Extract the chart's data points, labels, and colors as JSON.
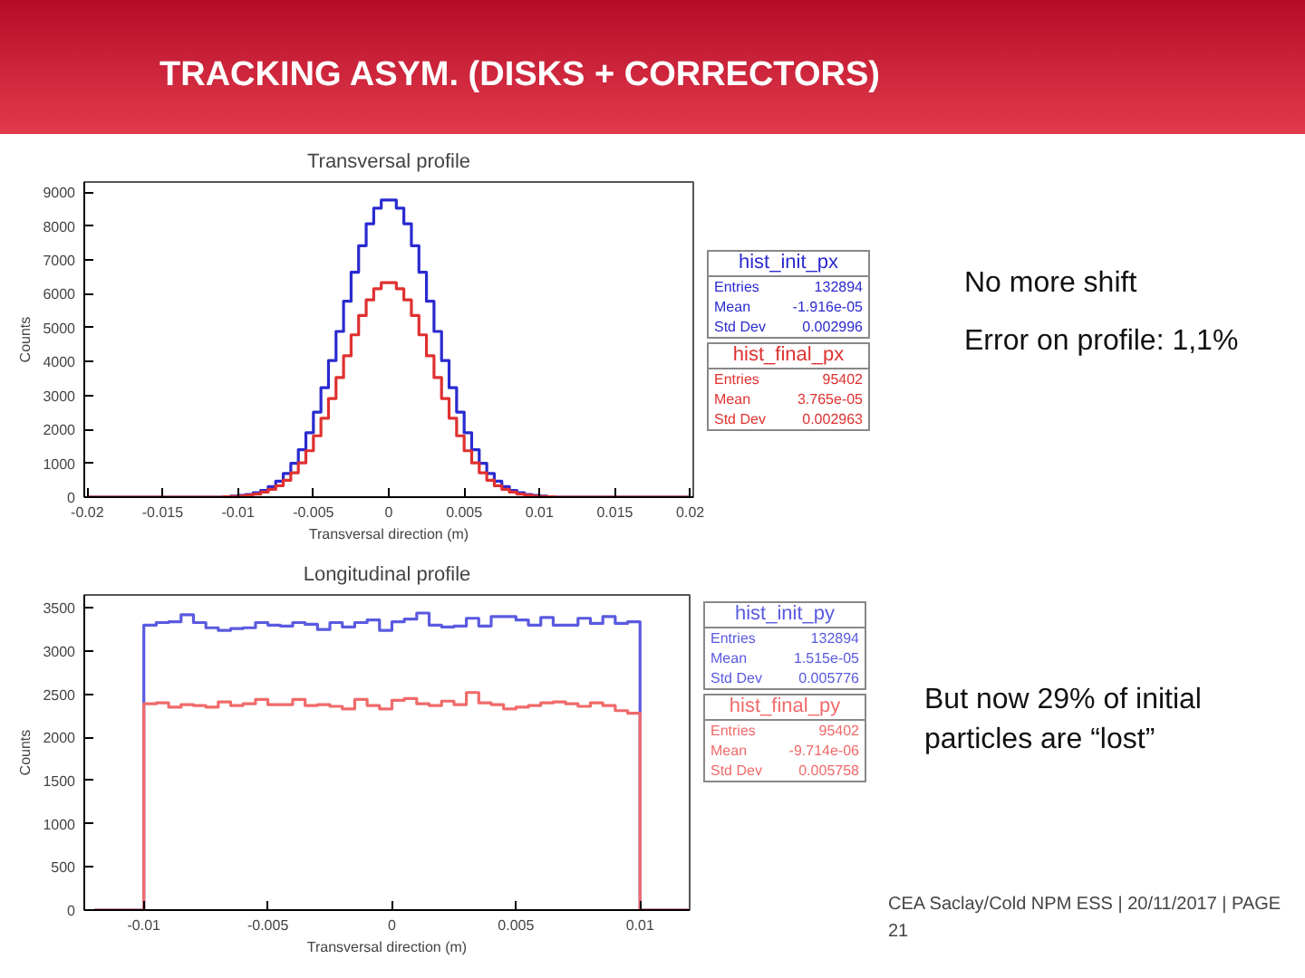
{
  "chart_data": [
    {
      "type": "histogram",
      "title": "Transversal profile",
      "xlabel": "Transversal direction (m)",
      "ylabel": "Counts",
      "bins": [
        -0.02,
        -0.0195,
        -0.019,
        -0.0185,
        -0.018,
        -0.0175,
        -0.017,
        -0.0165,
        -0.016,
        -0.0155,
        -0.015,
        -0.0145,
        -0.014,
        -0.0135,
        -0.013,
        -0.0125,
        -0.012,
        -0.0115,
        -0.011,
        -0.0105,
        -0.01,
        -0.0095,
        -0.009,
        -0.0085,
        -0.008,
        -0.0075,
        -0.007,
        -0.0065,
        -0.006,
        -0.0055,
        -0.005,
        -0.0045,
        -0.004,
        -0.0035,
        -0.003,
        -0.0025,
        -0.002,
        -0.0015,
        -0.001,
        -0.0005,
        0,
        0.0005,
        0.001,
        0.0015,
        0.002,
        0.0025,
        0.003,
        0.0035,
        0.004,
        0.0045,
        0.005,
        0.0055,
        0.006,
        0.0065,
        0.007,
        0.0075,
        0.008,
        0.0085,
        0.009,
        0.0095,
        0.01,
        0.0105,
        0.011,
        0.0115,
        0.012,
        0.0125,
        0.013,
        0.0135,
        0.014,
        0.0145,
        0.015,
        0.0155,
        0.016,
        0.0165,
        0.017,
        0.0175,
        0.018,
        0.0185,
        0.019,
        0.0195,
        0.02
      ],
      "series": [
        {
          "name": "hist_init_px",
          "color": "#2a2ad0",
          "values": [
            0,
            0,
            0,
            0,
            0,
            0,
            0,
            0,
            0,
            0,
            0,
            0,
            0,
            0,
            0,
            0,
            0,
            0,
            10,
            30,
            50,
            80,
            130,
            200,
            310,
            470,
            700,
            1000,
            1400,
            1900,
            2510,
            3230,
            4030,
            4890,
            5780,
            6640,
            7420,
            8070,
            8530,
            8770,
            8770,
            8530,
            8070,
            7420,
            6640,
            5780,
            4890,
            4030,
            3230,
            2510,
            1900,
            1400,
            1000,
            700,
            470,
            310,
            200,
            130,
            80,
            50,
            30,
            10,
            0,
            0,
            0,
            0,
            0,
            0,
            0,
            0,
            0,
            0,
            0,
            0,
            0,
            0,
            0,
            0,
            0,
            0
          ]
        },
        {
          "name": "hist_final_px",
          "color": "#e03030",
          "values": [
            0,
            0,
            0,
            0,
            0,
            0,
            0,
            0,
            0,
            0,
            0,
            0,
            0,
            0,
            0,
            0,
            0,
            0,
            10,
            20,
            30,
            60,
            90,
            150,
            230,
            340,
            500,
            720,
            1010,
            1370,
            1810,
            2330,
            2910,
            3530,
            4170,
            4790,
            5360,
            5820,
            6150,
            6330,
            6330,
            6150,
            5820,
            5360,
            4790,
            4170,
            3530,
            2910,
            2330,
            1810,
            1370,
            1010,
            720,
            500,
            340,
            230,
            150,
            90,
            60,
            30,
            20,
            10,
            0,
            0,
            0,
            0,
            0,
            0,
            0,
            0,
            0,
            0,
            0,
            0,
            0,
            0,
            0,
            0,
            0,
            0
          ]
        }
      ],
      "xlim": [
        -0.0202,
        0.0202
      ],
      "ylim": [
        0,
        9300
      ],
      "xticks": [
        -0.02,
        -0.015,
        -0.01,
        -0.005,
        0,
        0.005,
        0.01,
        0.015,
        0.02
      ],
      "yticks": [
        0,
        1000,
        2000,
        3000,
        4000,
        5000,
        6000,
        7000,
        8000,
        9000
      ],
      "annotations": [
        "Entries 132894",
        "Mean -1.916e-05",
        "Std Dev 0.002996",
        "Entries 95402",
        "Mean 3.765e-05",
        "Std Dev 0.002963",
        "TRACKING ASYM. (DISKS + CORRECTORS)",
        "No more shift",
        "Error on profile: 1,1%"
      ]
    },
    {
      "type": "histogram",
      "title": "Longitudinal profile",
      "xlabel": "Transversal direction (m)",
      "ylabel": "Counts",
      "bins": [
        -0.012,
        -0.0115,
        -0.011,
        -0.0105,
        -0.01,
        -0.0095,
        -0.009,
        -0.0085,
        -0.008,
        -0.0075,
        -0.007,
        -0.0065,
        -0.006,
        -0.0055,
        -0.005,
        -0.0045,
        -0.004,
        -0.0035,
        -0.003,
        -0.0025,
        -0.002,
        -0.0015,
        -0.001,
        -0.0005,
        0,
        0.0005,
        0.001,
        0.0015,
        0.002,
        0.0025,
        0.003,
        0.0035,
        0.004,
        0.0045,
        0.005,
        0.0055,
        0.006,
        0.0065,
        0.007,
        0.0075,
        0.008,
        0.0085,
        0.009,
        0.0095,
        0.01,
        0.0105,
        0.011,
        0.0115,
        0.012
      ],
      "series": [
        {
          "name": "hist_init_py",
          "color": "#5a5ae0",
          "values": [
            0,
            0,
            0,
            0,
            3300,
            3330,
            3340,
            3420,
            3330,
            3270,
            3240,
            3260,
            3270,
            3330,
            3300,
            3290,
            3330,
            3310,
            3250,
            3330,
            3280,
            3330,
            3360,
            3240,
            3340,
            3370,
            3440,
            3300,
            3280,
            3290,
            3380,
            3290,
            3400,
            3400,
            3360,
            3300,
            3390,
            3300,
            3300,
            3380,
            3320,
            3400,
            3320,
            3340,
            0,
            0,
            0,
            0
          ]
        },
        {
          "name": "hist_final_py",
          "color": "#f06a6a",
          "values": [
            0,
            0,
            0,
            0,
            2390,
            2400,
            2350,
            2380,
            2370,
            2350,
            2410,
            2370,
            2390,
            2440,
            2380,
            2380,
            2440,
            2370,
            2380,
            2360,
            2330,
            2440,
            2370,
            2330,
            2430,
            2450,
            2390,
            2370,
            2420,
            2380,
            2520,
            2400,
            2380,
            2330,
            2350,
            2370,
            2400,
            2410,
            2390,
            2360,
            2400,
            2370,
            2310,
            2280,
            0,
            0,
            0,
            0
          ]
        }
      ],
      "xlim": [
        -0.0124,
        0.012
      ],
      "ylim": [
        0,
        3650
      ],
      "xticks": [
        -0.01,
        -0.005,
        0,
        0.005,
        0.01
      ],
      "yticks": [
        0,
        500,
        1000,
        1500,
        2000,
        2500,
        3000,
        3500
      ],
      "annotations": [
        "Entries 132894",
        "Mean 1.515e-05",
        "Std Dev 0.005776",
        "Entries 95402",
        "Mean -9.714e-06",
        "Std Dev 0.005758",
        "But now 29% of initial particles are “lost”",
        "CEA Saclay/Cold NPM ESS | 20/11/2017 | PAGE 21"
      ]
    }
  ]
}
